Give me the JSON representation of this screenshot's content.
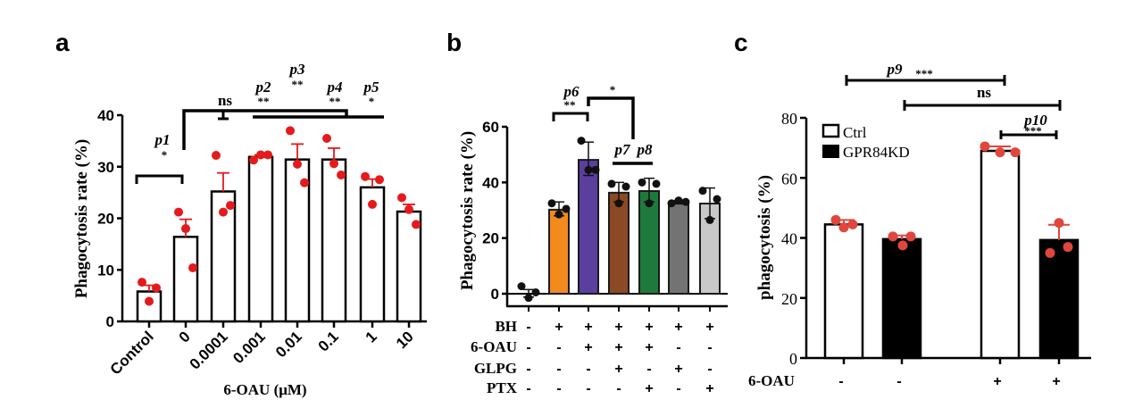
{
  "chart_data": [
    {
      "panel": "a",
      "type": "bar",
      "ylabel": "Phagocytosis rate (%)",
      "xlabel": "6-OAU (μM)",
      "ylim": [
        0,
        40
      ],
      "yticks": [
        0,
        10,
        20,
        30,
        40
      ],
      "categories": [
        "Control",
        "0",
        "0.0001",
        "0.001",
        "0.01",
        "0.1",
        "1",
        "10"
      ],
      "values": [
        5.8,
        16.4,
        25.2,
        31.9,
        31.4,
        31.4,
        26.0,
        21.3
      ],
      "error_upper": [
        7.0,
        19.8,
        28.8,
        32.3,
        34.4,
        33.6,
        27.6,
        22.7
      ],
      "points": [
        [
          7.6,
          3.9,
          6.5
        ],
        [
          21.2,
          18.0,
          10.4
        ],
        [
          32.2,
          21.2,
          22.5
        ],
        [
          31.3,
          32.3,
          32.3
        ],
        [
          37.0,
          30.5,
          26.9
        ],
        [
          35.5,
          30.6,
          28.4
        ],
        [
          28.1,
          22.7,
          27.5
        ],
        [
          24.0,
          21.7,
          18.8
        ]
      ],
      "bar_fill": "#ffffff",
      "bar_stroke": "#000000",
      "point_color": "#e41a1c",
      "annotations": [
        {
          "label": "p1",
          "stars": "*"
        },
        {
          "label": "",
          "stars": "ns"
        },
        {
          "label": "p2",
          "stars": "**"
        },
        {
          "label": "p3",
          "stars": "**"
        },
        {
          "label": "p4",
          "stars": "**"
        },
        {
          "label": "p5",
          "stars": "*"
        }
      ]
    },
    {
      "panel": "b",
      "type": "bar",
      "ylabel": "Phagocytosis rate (%)",
      "ylim": [
        0,
        60
      ],
      "yticks": [
        0,
        20,
        40,
        60
      ],
      "conditions": [
        {
          "name": "BH",
          "values": [
            "-",
            "+",
            "+",
            "+",
            "+",
            "+",
            "+"
          ]
        },
        {
          "name": "6-OAU",
          "values": [
            "-",
            "-",
            "+",
            "+",
            "+",
            "-",
            "-"
          ]
        },
        {
          "name": "GLPG",
          "values": [
            "-",
            "-",
            "-",
            "+",
            "-",
            "+",
            "-"
          ]
        },
        {
          "name": "PTX",
          "values": [
            "-",
            "-",
            "-",
            "-",
            "+",
            "-",
            "+"
          ]
        }
      ],
      "values": [
        0.0,
        30.2,
        48.1,
        36.3,
        36.9,
        32.8,
        32.4
      ],
      "error_lower": [
        -1.2,
        28.0,
        42.5,
        33.0,
        33.0,
        32.3,
        27.0
      ],
      "error_upper": [
        1.5,
        33.0,
        54.5,
        40.0,
        41.5,
        33.5,
        38.0
      ],
      "points": [
        [
          2.7,
          -1.5,
          0.5
        ],
        [
          32.5,
          28.5,
          30.5
        ],
        [
          55.0,
          44.5,
          44.5
        ],
        [
          39.5,
          32.5,
          38.5
        ],
        [
          40.0,
          32.5,
          39.5
        ],
        [
          32.5,
          33.5,
          33.0
        ],
        [
          37.0,
          26.5,
          34.0
        ]
      ],
      "bar_colors": [
        "#ffffff",
        "#f28a1e",
        "#5a3f9e",
        "#8b4a24",
        "#1e7a3c",
        "#737373",
        "#c8c8c8"
      ],
      "point_color": "#111111",
      "annotations": [
        {
          "label": "p6",
          "stars": "**"
        },
        {
          "label": "",
          "stars": "*"
        },
        {
          "label": "p7",
          "stars": ""
        },
        {
          "label": "p8",
          "stars": ""
        }
      ]
    },
    {
      "panel": "c",
      "type": "bar",
      "ylabel": "phagocytosis (%)",
      "ylim": [
        0,
        80
      ],
      "yticks": [
        0,
        20,
        40,
        60,
        80
      ],
      "condition_label": "6-OAU",
      "categories": [
        "-",
        "-",
        "+",
        "+"
      ],
      "groups": [
        "Ctrl",
        "GPR84KD",
        "Ctrl",
        "GPR84KD"
      ],
      "values": [
        44.5,
        39.6,
        69.0,
        39.3
      ],
      "error_upper": [
        46.0,
        40.8,
        70.5,
        44.4
      ],
      "points": [
        [
          46.0,
          43.5,
          44.5
        ],
        [
          40.5,
          37.5,
          40.5
        ],
        [
          70.5,
          68.5,
          68.5
        ],
        [
          45.0,
          35.0,
          37.0
        ]
      ],
      "legend": [
        {
          "label": "Ctrl",
          "fill": "#ffffff"
        },
        {
          "label": "GPR84KD",
          "fill": "#000000"
        }
      ],
      "legend_position": "top-left",
      "point_color": "#e0463c",
      "annotations": [
        {
          "label": "p9",
          "stars": "***"
        },
        {
          "label": "",
          "stars": "ns"
        },
        {
          "label": "p10",
          "stars": "***"
        }
      ]
    }
  ],
  "panel_labels": [
    "a",
    "b",
    "c"
  ]
}
